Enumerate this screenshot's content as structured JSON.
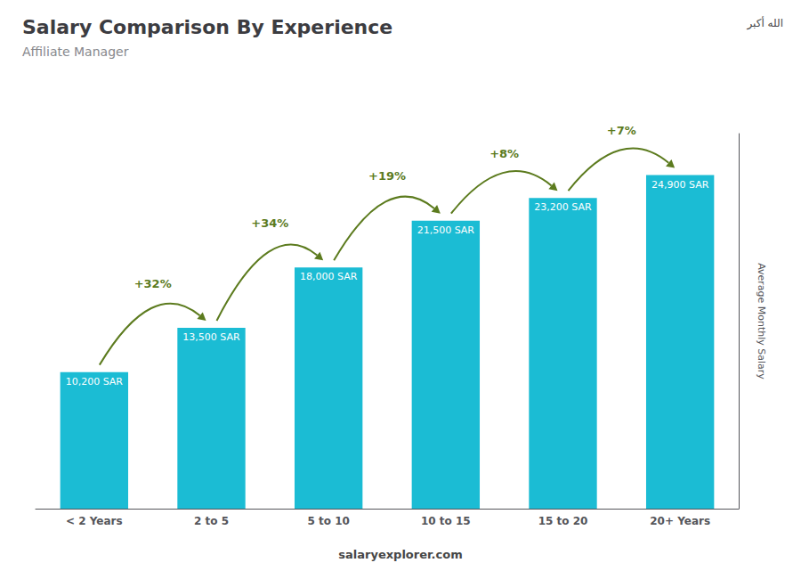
{
  "chart_data": {
    "type": "bar",
    "title": "Salary Comparison By Experience",
    "subtitle": "Affiliate Manager",
    "categories": [
      "< 2 Years",
      "2 to 5",
      "5 to 10",
      "10 to 15",
      "15 to 20",
      "20+ Years"
    ],
    "values": [
      10200,
      13500,
      18000,
      21500,
      23200,
      24900
    ],
    "value_labels": [
      "10,200 SAR",
      "13,500 SAR",
      "18,000 SAR",
      "21,500 SAR",
      "23,200 SAR",
      "24,900 SAR"
    ],
    "data_labels": true,
    "color": "#1bbcd4",
    "ylabel": "Average Monthly Salary",
    "ylim": [
      0,
      28000
    ],
    "annotations": [
      "+32%",
      "+34%",
      "+19%",
      "+8%",
      "+7%"
    ],
    "footer": "salaryexplorer.com",
    "badge": "الله أكبر",
    "grid": false,
    "tick_labels": "x"
  }
}
